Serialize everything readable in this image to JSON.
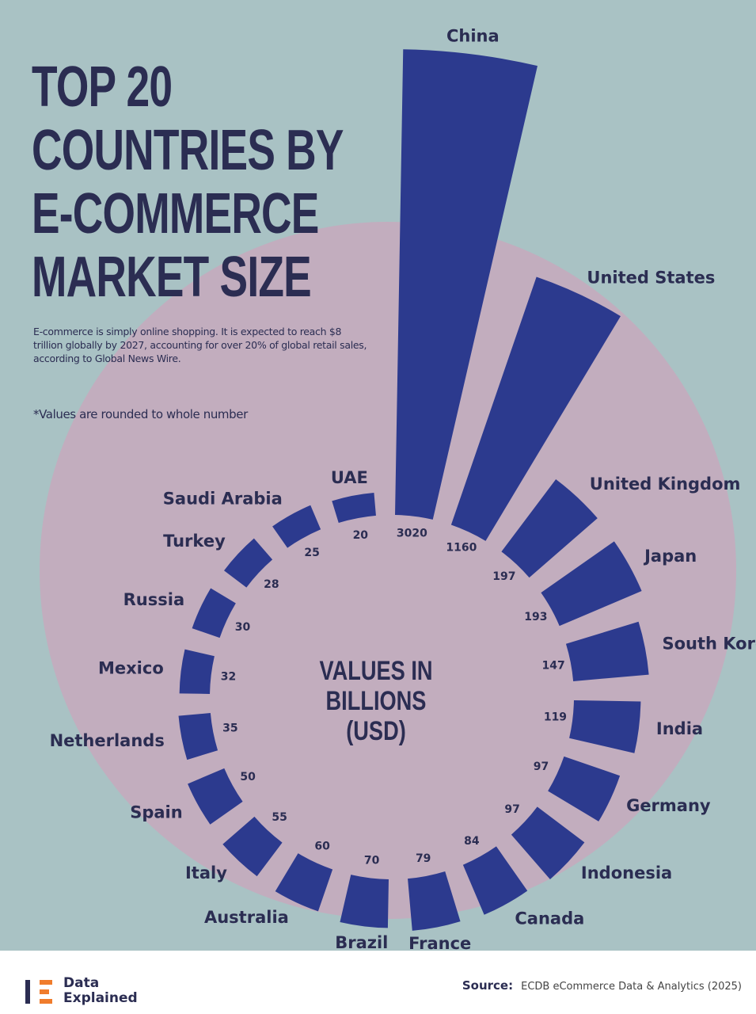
{
  "chart_data": {
    "type": "radial-bar",
    "title": "TOP 20 COUNTRIES BY E-COMMERCE MARKET SIZE",
    "subtitle": "E-commerce is simply online shopping. It is expected to reach $8 trillion globally by 2027, accounting for over 20% of global retail sales, according to Global News Wire.",
    "note": "*Values are rounded to whole number",
    "center_label": "VALUES IN BILLIONS (USD)",
    "categories": [
      "China",
      "United States",
      "United Kingdom",
      "Japan",
      "South Korea",
      "India",
      "Germany",
      "Indonesia",
      "Canada",
      "France",
      "Brazil",
      "Australia",
      "Italy",
      "Spain",
      "Netherlands",
      "Mexico",
      "Russia",
      "Turkey",
      "Saudi Arabia",
      "UAE"
    ],
    "values": [
      3020,
      1160,
      197,
      193,
      147,
      119,
      97,
      97,
      84,
      79,
      70,
      60,
      55,
      50,
      35,
      32,
      30,
      28,
      25,
      20
    ],
    "color": "#2c3a8e"
  },
  "footer": {
    "brand": "Data Explained",
    "source_label": "Source:",
    "source": "ECDB eCommerce Data & Analytics (2025)"
  }
}
